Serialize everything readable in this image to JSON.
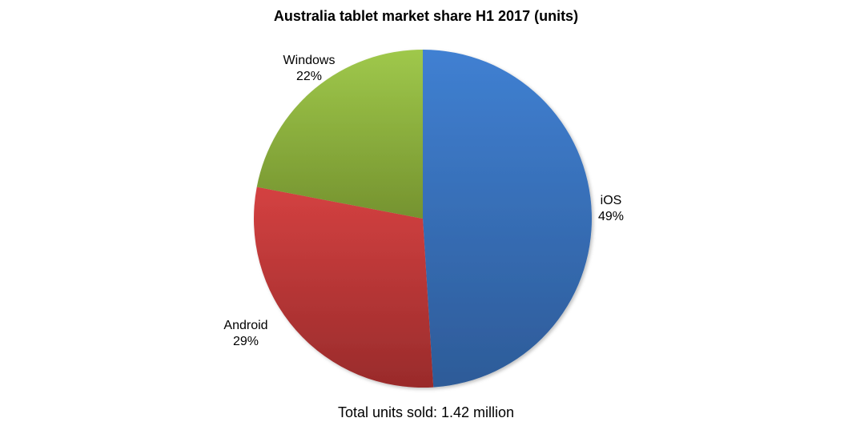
{
  "chart_data": {
    "type": "pie",
    "title": "Australia tablet market share H1 2017 (units)",
    "footer": "Total units sold: 1.42 million",
    "slices": [
      {
        "label": "iOS",
        "value": 49,
        "value_label": "49%",
        "color_top": "#4080d2",
        "color_bottom": "#2d5b98"
      },
      {
        "label": "Android",
        "value": 29,
        "value_label": "29%",
        "color_top": "#d44141",
        "color_bottom": "#992b2b"
      },
      {
        "label": "Windows",
        "value": 22,
        "value_label": "22%",
        "color_top": "#9fc84b",
        "color_bottom": "#75932f"
      }
    ],
    "start_angle": "12 o'clock",
    "direction": "clockwise",
    "legend": "none"
  }
}
